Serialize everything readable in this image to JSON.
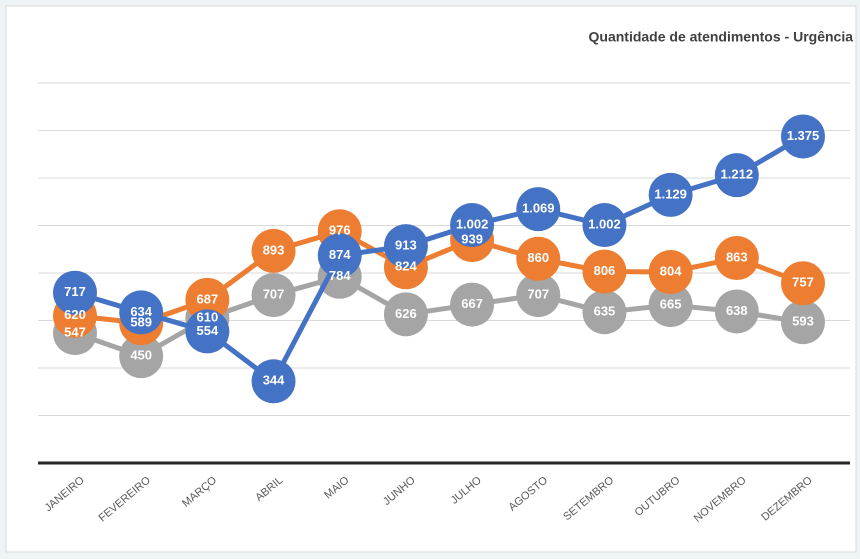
{
  "chart_data": {
    "type": "line",
    "title": "Quantidade de atendimentos - Urgência",
    "categories": [
      "JANEIRO",
      "FEVEREIRO",
      "MARÇO",
      "ABRIL",
      "MAIO",
      "JUNHO",
      "JULHO",
      "AGOSTO",
      "SETEMBRO",
      "OUTUBRO",
      "NOVEMBRO",
      "DEZEMBRO"
    ],
    "series": [
      {
        "color": "#4472c4",
        "values": [
          717,
          634,
          554,
          344,
          874,
          913,
          1002,
          1069,
          1002,
          1129,
          1212,
          1375
        ],
        "value_labels": [
          "717",
          "634",
          "554",
          "344",
          "874",
          "913",
          "1.002",
          "1.069",
          "1.002",
          "1.129",
          "1.212",
          "1.375"
        ]
      },
      {
        "color": "#ed7d31",
        "values": [
          620,
          589,
          687,
          893,
          976,
          824,
          939,
          860,
          806,
          804,
          863,
          757
        ]
      },
      {
        "color": "#a5a5a5",
        "values": [
          547,
          450,
          610,
          707,
          784,
          626,
          667,
          707,
          635,
          665,
          638,
          593
        ]
      }
    ],
    "ylim": [
      0,
      1600
    ],
    "yticks": [
      0,
      200,
      400,
      600,
      800,
      1000,
      1200,
      1400,
      1600
    ],
    "grid": true
  }
}
